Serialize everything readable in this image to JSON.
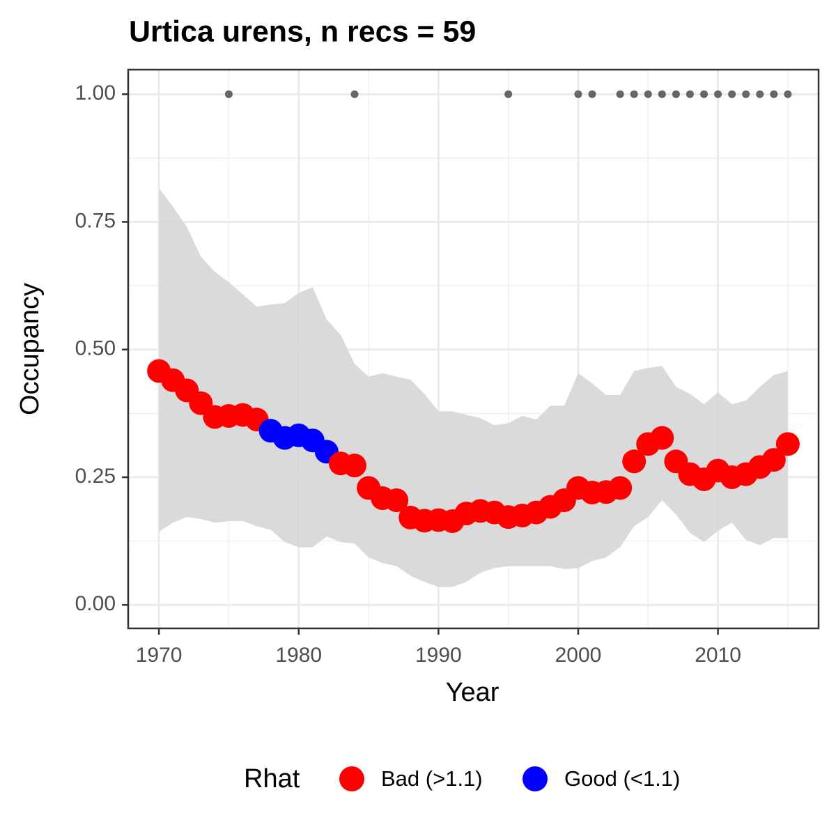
{
  "chart_data": {
    "type": "line",
    "title": "Urtica urens, n recs = 59",
    "x_label": "Year",
    "y_label": "Occupancy",
    "x": [
      1970,
      1971,
      1972,
      1973,
      1974,
      1975,
      1976,
      1977,
      1978,
      1979,
      1980,
      1981,
      1982,
      1983,
      1984,
      1985,
      1986,
      1987,
      1988,
      1989,
      1990,
      1991,
      1992,
      1993,
      1994,
      1995,
      1996,
      1997,
      1998,
      1999,
      2000,
      2001,
      2002,
      2003,
      2004,
      2005,
      2006,
      2007,
      2008,
      2009,
      2010,
      2011,
      2012,
      2013,
      2014,
      2015
    ],
    "values": [
      0.458,
      0.44,
      0.42,
      0.395,
      0.368,
      0.37,
      0.372,
      0.363,
      0.341,
      0.327,
      0.332,
      0.322,
      0.3,
      0.277,
      0.273,
      0.229,
      0.209,
      0.205,
      0.171,
      0.165,
      0.166,
      0.164,
      0.179,
      0.184,
      0.181,
      0.172,
      0.175,
      0.181,
      0.192,
      0.205,
      0.229,
      0.22,
      0.221,
      0.229,
      0.281,
      0.315,
      0.327,
      0.281,
      0.256,
      0.246,
      0.263,
      0.25,
      0.256,
      0.27,
      0.284,
      0.315
    ],
    "upper": [
      0.816,
      0.78,
      0.74,
      0.682,
      0.652,
      0.632,
      0.608,
      0.584,
      0.588,
      0.591,
      0.611,
      0.622,
      0.559,
      0.529,
      0.472,
      0.447,
      0.454,
      0.447,
      0.441,
      0.413,
      0.379,
      0.379,
      0.372,
      0.366,
      0.352,
      0.356,
      0.37,
      0.363,
      0.39,
      0.39,
      0.454,
      0.434,
      0.411,
      0.411,
      0.458,
      0.464,
      0.468,
      0.427,
      0.413,
      0.393,
      0.416,
      0.393,
      0.4,
      0.427,
      0.45,
      0.458
    ],
    "lower": [
      0.143,
      0.161,
      0.172,
      0.168,
      0.161,
      0.164,
      0.164,
      0.154,
      0.147,
      0.123,
      0.113,
      0.113,
      0.134,
      0.123,
      0.12,
      0.093,
      0.082,
      0.076,
      0.057,
      0.045,
      0.035,
      0.035,
      0.045,
      0.063,
      0.072,
      0.076,
      0.076,
      0.076,
      0.076,
      0.07,
      0.072,
      0.086,
      0.093,
      0.113,
      0.154,
      0.172,
      0.205,
      0.177,
      0.141,
      0.123,
      0.145,
      0.161,
      0.127,
      0.117,
      0.131,
      0.131
    ],
    "band_color": "#d6d6d6",
    "rhat_group": [
      0,
      0,
      0,
      0,
      0,
      0,
      0,
      0,
      1,
      1,
      1,
      1,
      1,
      0,
      0,
      0,
      0,
      0,
      0,
      0,
      0,
      0,
      0,
      0,
      0,
      0,
      0,
      0,
      0,
      0,
      0,
      0,
      0,
      0,
      0,
      0,
      0,
      0,
      0,
      0,
      0,
      0,
      0,
      0,
      0,
      0
    ],
    "legend": {
      "title": "Rhat",
      "entries": [
        {
          "name": "Bad (>1.1)",
          "color": "#ff0000"
        },
        {
          "name": "Good (<1.1)",
          "color": "#0000ff"
        }
      ]
    },
    "records": {
      "color": "#666666",
      "x": [
        1975,
        1984,
        1995,
        2000,
        2001,
        2003,
        2004,
        2005,
        2006,
        2007,
        2008,
        2009,
        2010,
        2011,
        2012,
        2013,
        2014,
        2015
      ],
      "values": [
        1,
        1,
        1,
        1,
        1,
        1,
        1,
        1,
        1,
        1,
        1,
        1,
        1,
        1,
        1,
        1,
        1,
        1
      ]
    },
    "xlim": [
      1967.8,
      2017.2
    ],
    "ylim": [
      -0.046,
      1.048
    ],
    "xticks": [
      1970,
      1980,
      1990,
      2000,
      2010
    ],
    "yticks": [
      {
        "value": 0,
        "label": "0.00"
      },
      {
        "value": 0.25,
        "label": "0.25"
      },
      {
        "value": 0.5,
        "label": "0.50"
      },
      {
        "value": 0.75,
        "label": "0.75"
      },
      {
        "value": 1,
        "label": "1.00"
      }
    ],
    "x_minor_grid": [
      1975,
      1985,
      1995,
      2005,
      2015
    ],
    "y_minor_grid": [
      0.125,
      0.375,
      0.625,
      0.875
    ],
    "grid": true
  }
}
